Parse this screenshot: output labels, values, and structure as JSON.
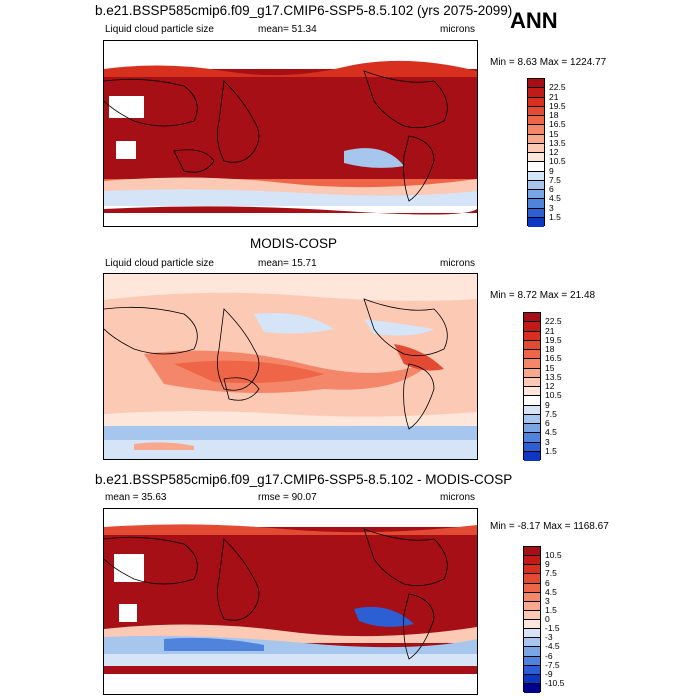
{
  "ann_label": "ANN",
  "panels": [
    {
      "title": "b.e21.BSSP585cmip6.f09_g17.CMIP6-SSP5-8.5.102 (yrs 2075-2099)",
      "left_label": "Liquid cloud particle size",
      "mean_text": "mean=  51.34",
      "rmse_text": "",
      "units": "microns",
      "minmax": "Min =   8.63 Max = 1224.77",
      "colorbar": {
        "labels": [
          "22.5",
          "21",
          "19.5",
          "18",
          "16.5",
          "15",
          "13.5",
          "12",
          "10.5",
          "9",
          "7.5",
          "6",
          "4.5",
          "3",
          "1.5"
        ],
        "colors": [
          "#a50f15",
          "#c11b17",
          "#d7301f",
          "#e34a33",
          "#ef6548",
          "#f4876a",
          "#f8a88c",
          "#fcc9b4",
          "#fee6da",
          "#ffffff",
          "#d5e4f6",
          "#a7c6ee",
          "#7aa6e6",
          "#4f83dc",
          "#2b5fd3",
          "#0d36c2"
        ]
      },
      "map_style": "model"
    },
    {
      "title": "MODIS-COSP",
      "left_label": "Liquid cloud particle size",
      "mean_text": "mean=  15.71",
      "rmse_text": "",
      "units": "microns",
      "minmax": "Min =   8.72 Max =  21.48",
      "colorbar": {
        "labels": [
          "22.5",
          "21",
          "19.5",
          "18",
          "16.5",
          "15",
          "13.5",
          "12",
          "10.5",
          "9",
          "7.5",
          "6",
          "4.5",
          "3",
          "1.5"
        ],
        "colors": [
          "#a50f15",
          "#c11b17",
          "#d7301f",
          "#e34a33",
          "#ef6548",
          "#f4876a",
          "#f8a88c",
          "#fcc9b4",
          "#fee6da",
          "#ffffff",
          "#d5e4f6",
          "#a7c6ee",
          "#7aa6e6",
          "#4f83dc",
          "#2b5fd3",
          "#0d36c2"
        ]
      },
      "map_style": "obs"
    },
    {
      "title": "b.e21.BSSP585cmip6.f09_g17.CMIP6-SSP5-8.5.102 - MODIS-COSP",
      "left_label": "mean =  35.63",
      "mean_text": "rmse =  90.07",
      "rmse_text": "",
      "units": "microns",
      "minmax": "Min =  -8.17 Max = 1168.67",
      "colorbar": {
        "labels": [
          "10.5",
          "9",
          "7.5",
          "6",
          "4.5",
          "3",
          "1.5",
          "0",
          "-1.5",
          "-3",
          "-4.5",
          "-6",
          "-7.5",
          "-9",
          "-10.5"
        ],
        "colors": [
          "#a50f15",
          "#c11b17",
          "#d7301f",
          "#e34a33",
          "#ef6548",
          "#f4876a",
          "#f8a88c",
          "#fcc9b4",
          "#fee6da",
          "#d5e4f6",
          "#a7c6ee",
          "#7aa6e6",
          "#4f83dc",
          "#2b5fd3",
          "#0d36c2",
          "#00008b"
        ]
      },
      "map_style": "diff"
    }
  ]
}
